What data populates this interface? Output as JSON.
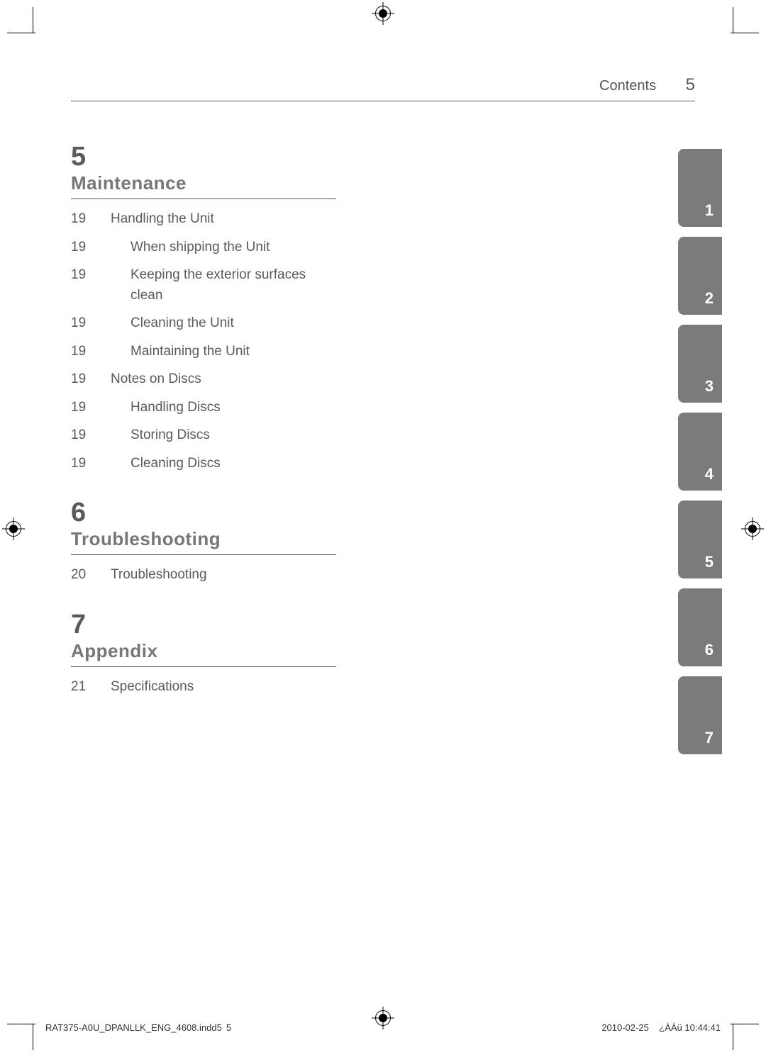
{
  "header": {
    "label": "Contents",
    "page_number": "5"
  },
  "sections": [
    {
      "number": "5",
      "title": "Maintenance",
      "entries": [
        {
          "page": "19",
          "label": "Handling the Unit",
          "indent": false
        },
        {
          "page": "19",
          "label": "When shipping the Unit",
          "indent": true
        },
        {
          "page": "19",
          "label": "Keeping the exterior surfaces clean",
          "indent": true
        },
        {
          "page": "19",
          "label": "Cleaning the Unit",
          "indent": true
        },
        {
          "page": "19",
          "label": "Maintaining the Unit",
          "indent": true
        },
        {
          "page": "19",
          "label": "Notes on Discs",
          "indent": false
        },
        {
          "page": "19",
          "label": "Handling Discs",
          "indent": true
        },
        {
          "page": "19",
          "label": "Storing Discs",
          "indent": true
        },
        {
          "page": "19",
          "label": "Cleaning Discs",
          "indent": true
        }
      ]
    },
    {
      "number": "6",
      "title": "Troubleshooting",
      "entries": [
        {
          "page": "20",
          "label": "Troubleshooting",
          "indent": false
        }
      ]
    },
    {
      "number": "7",
      "title": "Appendix",
      "entries": [
        {
          "page": "21",
          "label": "Specifications",
          "indent": false
        }
      ]
    }
  ],
  "tabs": [
    "1",
    "2",
    "3",
    "4",
    "5",
    "6",
    "7"
  ],
  "tab_bg": "#7b7b7b",
  "tab_text": "#ffffff",
  "section_title_color": "#777777",
  "text_color": "#5a5a5a",
  "footer": {
    "file_left": "RAT375-A0U_DPANLLK_ENG_4608.indd5",
    "file_page": "5",
    "date": "2010-02-25",
    "time": "¿ÀÀü 10:44:41"
  }
}
